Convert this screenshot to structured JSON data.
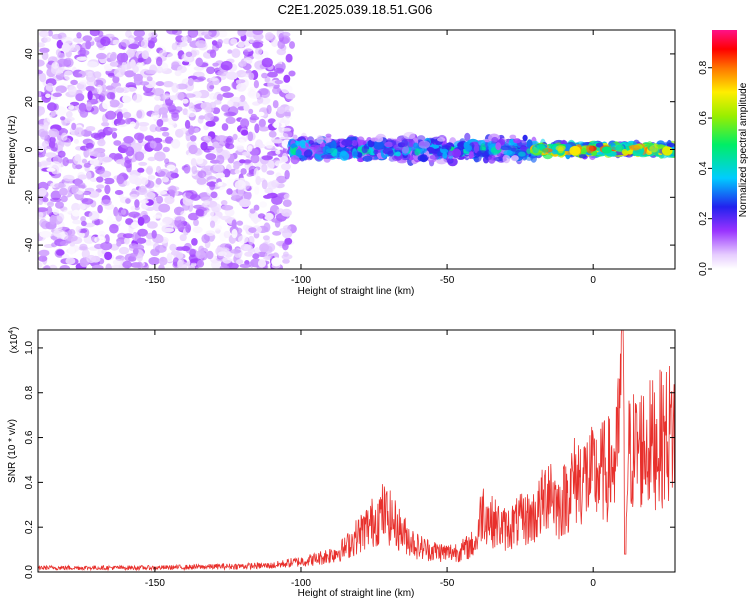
{
  "figure": {
    "title": "C2E1.2025.039.18.51.G06"
  },
  "chart_data": [
    {
      "type": "heatmap",
      "panel": "spectrogram",
      "xlabel": "Height of straight line (km)",
      "ylabel": "Frequency (Hz)",
      "xlim": [
        -190,
        28
      ],
      "ylim": [
        -50,
        50
      ],
      "x_ticks": [
        -150,
        -100,
        -50,
        0
      ],
      "y_ticks": [
        -40,
        -20,
        0,
        20,
        40
      ],
      "x_tick_labels": [
        "-150",
        "-100",
        "-50",
        "0"
      ],
      "y_tick_labels": [
        "-40",
        "-20",
        "0",
        "20",
        "40"
      ],
      "colorbar": {
        "label": "Normalized spectral amplitude",
        "range": [
          0,
          0.95
        ],
        "ticks": [
          0.0,
          0.2,
          0.4,
          0.6,
          0.8
        ],
        "tick_labels": [
          "0.0",
          "0.2",
          "0.4",
          "0.6",
          "0.8"
        ],
        "colormap": "white-purple-blue-cyan-green-yellow-red-magenta"
      },
      "regions": [
        {
          "x_range": [
            -190,
            -103
          ],
          "f_range": [
            -50,
            50
          ],
          "amplitude_range": [
            0.0,
            0.15
          ],
          "pattern": "broadband noise"
        },
        {
          "x_range": [
            -103,
            -20
          ],
          "f_center": 0,
          "f_halfwidth": 6,
          "amplitude_range": [
            0.1,
            0.5
          ],
          "pattern": "signal band"
        },
        {
          "x_range": [
            -20,
            28
          ],
          "f_center": 0,
          "f_halfwidth": 3,
          "amplitude_range": [
            0.3,
            0.95
          ],
          "pattern": "strong narrow signal"
        }
      ]
    },
    {
      "type": "line",
      "panel": "snr",
      "xlabel": "Height of straight line (km)",
      "ylabel": "SNR (10 * v/v)",
      "multiplier_label": "(x10",
      "multiplier_exp": "4",
      "multiplier_close": ")",
      "xlim": [
        -190,
        28
      ],
      "ylim": [
        0,
        1.08
      ],
      "x_ticks": [
        -150,
        -100,
        -50,
        0
      ],
      "y_ticks": [
        0.0,
        0.2,
        0.4,
        0.6,
        0.8,
        1.0
      ],
      "x_tick_labels": [
        "-150",
        "-100",
        "-50",
        "0"
      ],
      "y_tick_labels": [
        "0.0",
        "0.2",
        "0.4",
        "0.6",
        "0.8",
        "1.0"
      ],
      "color": "#e8302c",
      "series": [
        {
          "x": [
            -190,
            -170,
            -150,
            -130,
            -110,
            -100,
            -95,
            -90,
            -85,
            -80,
            -75,
            -72,
            -70,
            -65,
            -60,
            -55,
            -50,
            -45,
            -40,
            -38,
            -35,
            -30,
            -25,
            -20,
            -17,
            -15,
            -12,
            -10,
            -7,
            -5,
            0,
            5,
            8,
            10,
            11,
            12,
            15,
            20,
            25,
            28
          ],
          "y": [
            0.02,
            0.02,
            0.02,
            0.025,
            0.03,
            0.05,
            0.06,
            0.08,
            0.11,
            0.18,
            0.24,
            0.28,
            0.26,
            0.18,
            0.12,
            0.1,
            0.09,
            0.1,
            0.14,
            0.3,
            0.24,
            0.2,
            0.24,
            0.26,
            0.33,
            0.42,
            0.3,
            0.34,
            0.42,
            0.44,
            0.45,
            0.48,
            0.52,
            0.95,
            0.2,
            0.55,
            0.58,
            0.6,
            0.64,
            0.68
          ]
        }
      ]
    }
  ]
}
